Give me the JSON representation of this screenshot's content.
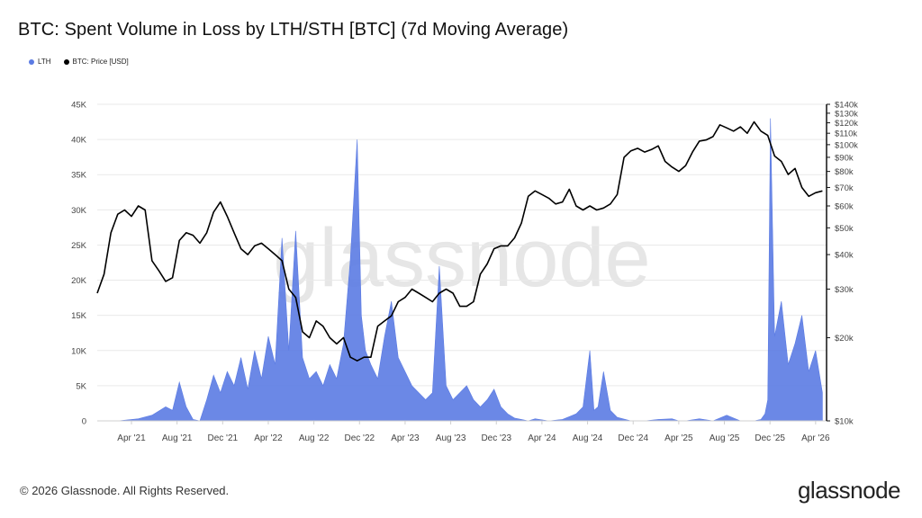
{
  "header": {
    "title": "BTC: Spent Volume in Loss by LTH/STH [BTC] (7d Moving Average)"
  },
  "legend": [
    {
      "label": "LTH",
      "color": "#5b7be3"
    },
    {
      "label": "BTC: Price [USD]",
      "color": "#000000"
    }
  ],
  "watermark": "glassnode",
  "footer": {
    "copyright": "© 2026 Glassnode. All Rights Reserved.",
    "logo": "glassnode"
  },
  "chart_data": {
    "type": "area",
    "x_tick_labels": [
      "Apr '21",
      "Aug '21",
      "Dec '21",
      "Apr '22",
      "Aug '22",
      "Dec '22",
      "Apr '23",
      "Aug '23",
      "Dec '23",
      "Apr '24",
      "Aug '24",
      "Dec '24",
      "Apr '25",
      "Aug '25",
      "Dec '25",
      "Apr '26"
    ],
    "x_range": [
      2021.0,
      2026.33
    ],
    "y_left": {
      "min": 0,
      "max": 45000,
      "ticks": [
        0,
        5000,
        10000,
        15000,
        20000,
        25000,
        30000,
        35000,
        40000,
        45000
      ],
      "tick_labels": [
        "0",
        "5K",
        "10K",
        "15K",
        "20K",
        "25K",
        "30K",
        "35K",
        "40K",
        "45K"
      ]
    },
    "y_right": {
      "scale": "log",
      "min": 10000,
      "max": 140000,
      "ticks": [
        10000,
        20000,
        30000,
        40000,
        50000,
        60000,
        70000,
        80000,
        90000,
        100000,
        110000,
        120000,
        130000,
        140000
      ],
      "tick_labels": [
        "$10k",
        "$20k",
        "$30k",
        "$40k",
        "$50k",
        "$60k",
        "$70k",
        "$80k",
        "$90k",
        "$100k",
        "$110k",
        "$120k",
        "$130k",
        "$140k"
      ]
    },
    "series": [
      {
        "name": "LTH",
        "axis": "left",
        "color": "#5b7be3",
        "x": [
          2021.0,
          2021.15,
          2021.3,
          2021.4,
          2021.5,
          2021.55,
          2021.6,
          2021.65,
          2021.7,
          2021.75,
          2021.8,
          2021.85,
          2021.9,
          2021.95,
          2022.0,
          2022.05,
          2022.1,
          2022.15,
          2022.2,
          2022.25,
          2022.3,
          2022.35,
          2022.4,
          2022.45,
          2022.5,
          2022.55,
          2022.6,
          2022.65,
          2022.7,
          2022.75,
          2022.8,
          2022.85,
          2022.9,
          2022.93,
          2022.96,
          2023.0,
          2023.05,
          2023.1,
          2023.15,
          2023.2,
          2023.25,
          2023.3,
          2023.35,
          2023.4,
          2023.45,
          2023.5,
          2023.55,
          2023.6,
          2023.65,
          2023.7,
          2023.75,
          2023.8,
          2023.85,
          2023.9,
          2023.95,
          2024.0,
          2024.05,
          2024.1,
          2024.15,
          2024.2,
          2024.3,
          2024.4,
          2024.5,
          2024.55,
          2024.6,
          2024.63,
          2024.66,
          2024.7,
          2024.75,
          2024.8,
          2024.9,
          2025.0,
          2025.1,
          2025.2,
          2025.25,
          2025.3,
          2025.4,
          2025.5,
          2025.6,
          2025.7,
          2025.8,
          2025.85,
          2025.88,
          2025.9,
          2025.92,
          2025.95,
          2026.0,
          2026.05,
          2026.1,
          2026.15,
          2026.2,
          2026.25,
          2026.3
        ],
        "values": [
          0,
          0,
          300,
          800,
          2000,
          1500,
          5500,
          2000,
          200,
          0,
          3000,
          6500,
          4000,
          7000,
          5000,
          9000,
          4500,
          10000,
          6000,
          12000,
          8000,
          26000,
          10000,
          27000,
          9000,
          6000,
          7000,
          5000,
          8000,
          6000,
          11000,
          23000,
          40000,
          15000,
          10000,
          8000,
          6000,
          12000,
          17000,
          9000,
          7000,
          5000,
          4000,
          3000,
          4000,
          22000,
          5000,
          3000,
          4000,
          5000,
          3000,
          2000,
          3000,
          4500,
          2000,
          1000,
          400,
          200,
          0,
          300,
          0,
          200,
          1000,
          2000,
          10000,
          1500,
          2000,
          7000,
          1500,
          500,
          0,
          0,
          200,
          300,
          0,
          0,
          300,
          0,
          800,
          0,
          0,
          200,
          1000,
          3000,
          43000,
          12000,
          17000,
          8000,
          11000,
          15000,
          7000,
          10000,
          4000
        ]
      },
      {
        "name": "BTC: Price [USD]",
        "axis": "right",
        "color": "#000000",
        "x": [
          2021.0,
          2021.05,
          2021.1,
          2021.15,
          2021.2,
          2021.25,
          2021.3,
          2021.35,
          2021.4,
          2021.45,
          2021.5,
          2021.55,
          2021.6,
          2021.65,
          2021.7,
          2021.75,
          2021.8,
          2021.85,
          2021.9,
          2021.95,
          2022.0,
          2022.05,
          2022.1,
          2022.15,
          2022.2,
          2022.25,
          2022.3,
          2022.35,
          2022.4,
          2022.45,
          2022.5,
          2022.55,
          2022.6,
          2022.65,
          2022.7,
          2022.75,
          2022.8,
          2022.85,
          2022.9,
          2022.95,
          2023.0,
          2023.05,
          2023.1,
          2023.15,
          2023.2,
          2023.25,
          2023.3,
          2023.35,
          2023.4,
          2023.45,
          2023.5,
          2023.55,
          2023.6,
          2023.65,
          2023.7,
          2023.75,
          2023.8,
          2023.85,
          2023.9,
          2023.95,
          2024.0,
          2024.05,
          2024.1,
          2024.15,
          2024.2,
          2024.25,
          2024.3,
          2024.35,
          2024.4,
          2024.45,
          2024.5,
          2024.55,
          2024.6,
          2024.65,
          2024.7,
          2024.75,
          2024.8,
          2024.85,
          2024.9,
          2024.95,
          2025.0,
          2025.05,
          2025.1,
          2025.15,
          2025.2,
          2025.25,
          2025.3,
          2025.35,
          2025.4,
          2025.45,
          2025.5,
          2025.55,
          2025.6,
          2025.65,
          2025.7,
          2025.75,
          2025.8,
          2025.85,
          2025.9,
          2025.95,
          2026.0,
          2026.05,
          2026.1,
          2026.15,
          2026.2,
          2026.25,
          2026.3
        ],
        "values": [
          29000,
          34000,
          48000,
          56000,
          58000,
          55000,
          60000,
          58000,
          38000,
          35000,
          32000,
          33000,
          45000,
          48000,
          47000,
          44000,
          48000,
          57000,
          62000,
          55000,
          48000,
          42000,
          40000,
          43000,
          44000,
          42000,
          40000,
          38000,
          30000,
          28000,
          21000,
          20000,
          23000,
          22000,
          20000,
          19000,
          20000,
          17000,
          16500,
          17000,
          17000,
          22000,
          23000,
          24000,
          27000,
          28000,
          30000,
          29000,
          28000,
          27000,
          29000,
          30000,
          29000,
          26000,
          26000,
          27000,
          34000,
          37000,
          42000,
          43000,
          43000,
          46000,
          52000,
          65000,
          68000,
          66000,
          64000,
          61000,
          62000,
          69000,
          60000,
          58000,
          60000,
          58000,
          59000,
          61000,
          66000,
          90000,
          95000,
          97000,
          94000,
          96000,
          99000,
          87000,
          83000,
          80000,
          84000,
          94000,
          103000,
          104000,
          107000,
          118000,
          115000,
          112000,
          116000,
          110000,
          121000,
          112000,
          108000,
          91000,
          87000,
          78000,
          82000,
          70000,
          65000,
          67000,
          68000
        ]
      }
    ],
    "grid": true,
    "legend_position": "top-left"
  }
}
